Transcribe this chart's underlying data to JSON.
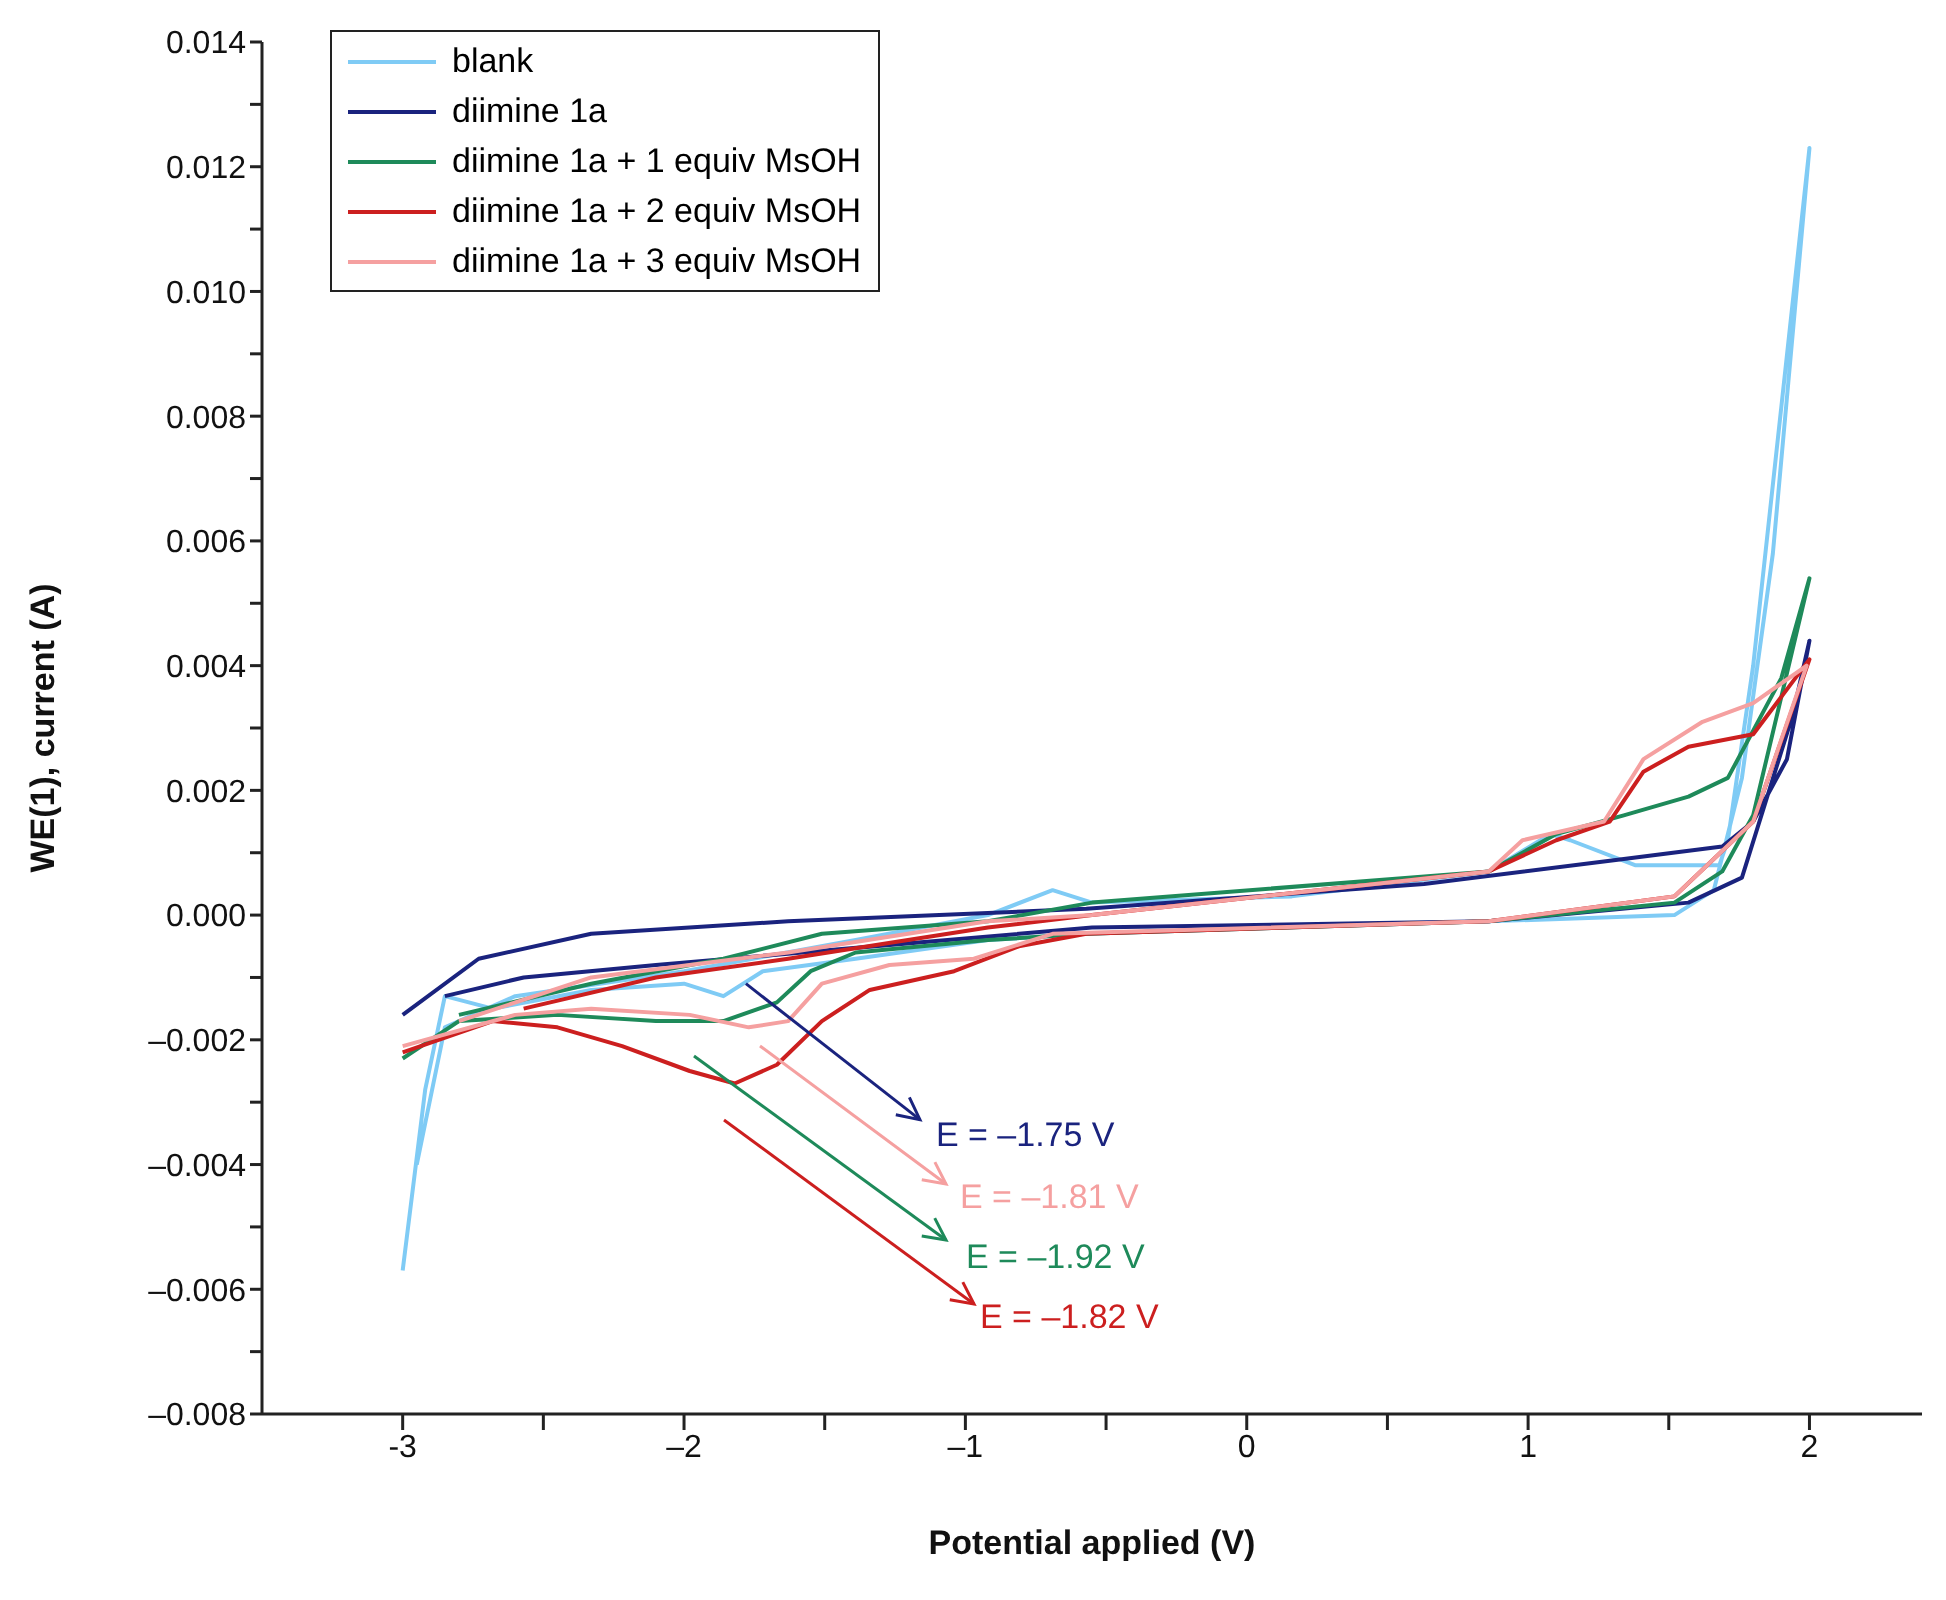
{
  "chart_data": {
    "type": "line",
    "xlabel": "Potential applied (V)",
    "ylabel": "WE(1), current (A)",
    "xlim": [
      -3.5,
      2.4
    ],
    "xticks": [
      -3,
      {
        "value": -2.5,
        "label": null
      },
      {
        "value": -2,
        "label": "–2"
      },
      {
        "value": -1.5,
        "label": null
      },
      {
        "value": -1,
        "label": "–1"
      },
      {
        "value": -0.5,
        "label": null
      },
      0,
      {
        "value": 0.5,
        "label": null
      },
      1,
      {
        "value": 1.5,
        "label": null
      },
      2
    ],
    "ylim": [
      -0.008,
      0.014
    ],
    "yticks": [
      {
        "value": -0.008,
        "label": "–0.008"
      },
      {
        "value": -0.007,
        "label": null
      },
      {
        "value": -0.006,
        "label": "–0.006"
      },
      {
        "value": -0.005,
        "label": null
      },
      {
        "value": -0.004,
        "label": "–0.004"
      },
      {
        "value": -0.003,
        "label": null
      },
      {
        "value": -0.002,
        "label": "–0.002"
      },
      {
        "value": -0.001,
        "label": null
      },
      {
        "value": 0,
        "label": "0.000"
      },
      {
        "value": 0.001,
        "label": null
      },
      {
        "value": 0.002,
        "label": "0.002"
      },
      {
        "value": 0.003,
        "label": null
      },
      {
        "value": 0.004,
        "label": "0.004"
      },
      {
        "value": 0.005,
        "label": null
      },
      {
        "value": 0.006,
        "label": "0.006"
      },
      {
        "value": 0.007,
        "label": null
      },
      {
        "value": 0.008,
        "label": "0.008"
      },
      {
        "value": 0.009,
        "label": null
      },
      {
        "value": 0.01,
        "label": "0.010"
      },
      {
        "value": 0.011,
        "label": null
      },
      {
        "value": 0.012,
        "label": "0.012"
      },
      {
        "value": 0.013,
        "label": null
      },
      {
        "value": 0.014,
        "label": "0.014"
      }
    ],
    "grid": false,
    "legend": "top left",
    "marker": "none",
    "line_style": "solid",
    "series": [
      {
        "name": "blank",
        "color": "#7fcbf5",
        "x": [
          -3,
          -2.92,
          -2.85,
          -2.68,
          -2.33,
          -2.0,
          -1.86,
          -1.72,
          -1.39,
          -0.92,
          -0.57,
          0.86,
          1.52,
          1.66,
          1.76,
          1.87,
          2.0,
          1.8,
          1.71,
          1.68,
          1.38,
          1.15,
          1.08,
          0.86,
          0.16,
          -0.55,
          -0.69,
          -0.92,
          -1.39,
          -2.0,
          -2.6,
          -2.85,
          -2.95
        ],
        "values": [
          -0.0057,
          -0.0028,
          -0.0013,
          -0.0015,
          -0.0012,
          -0.0011,
          -0.0013,
          -0.0009,
          -0.0007,
          -0.0004,
          -0.0003,
          -0.0001,
          0.0,
          0.0004,
          0.0022,
          0.0058,
          0.0123,
          0.004,
          0.0012,
          0.0008,
          0.0008,
          0.0012,
          0.0013,
          0.0007,
          0.0003,
          0.0002,
          0.0004,
          0.0,
          -0.0004,
          -0.0009,
          -0.0013,
          -0.0018,
          -0.004
        ]
      },
      {
        "name": "diimine 1a",
        "color": "#1a237e",
        "x": [
          -3,
          -2.73,
          -2.33,
          -1.63,
          -0.57,
          0.63,
          1.34,
          1.69,
          1.8,
          1.92,
          2.0,
          1.94,
          1.76,
          1.57,
          0.86,
          -0.55,
          -2.1,
          -2.57,
          -2.85
        ],
        "values": [
          -0.0016,
          -0.0007,
          -0.0003,
          -0.0001,
          0.0001,
          0.0005,
          0.0009,
          0.0011,
          0.0015,
          0.0025,
          0.0044,
          0.0032,
          0.0006,
          0.0002,
          -0.0001,
          -0.0002,
          -0.0008,
          -0.001,
          -0.0013
        ]
      },
      {
        "name": "diimine 1a + 1 equiv MsOH",
        "color": "#1e8a5a",
        "x": [
          -3,
          -2.8,
          -2.45,
          -2.1,
          -1.86,
          -1.67,
          -1.55,
          -1.39,
          -0.92,
          -0.57,
          0.86,
          1.52,
          1.69,
          1.8,
          2.0,
          1.9,
          1.71,
          1.57,
          1.34,
          1.1,
          0.86,
          -0.55,
          -0.92,
          -1.51,
          -1.86,
          -2.33,
          -2.8
        ],
        "values": [
          -0.0023,
          -0.0017,
          -0.0016,
          -0.0017,
          -0.0017,
          -0.0014,
          -0.0009,
          -0.0006,
          -0.0004,
          -0.0003,
          -0.0001,
          0.0002,
          0.0007,
          0.0016,
          0.0054,
          0.0038,
          0.0022,
          0.0019,
          0.0016,
          0.0013,
          0.0007,
          0.0002,
          -0.0001,
          -0.0003,
          -0.0007,
          -0.0011,
          -0.0016
        ]
      },
      {
        "name": "diimine 1a + 2 equiv MsOH",
        "color": "#cc1f1f",
        "x": [
          -3,
          -2.68,
          -2.45,
          -2.22,
          -1.98,
          -1.82,
          -1.67,
          -1.51,
          -1.34,
          -1.04,
          -0.81,
          -0.57,
          0.86,
          1.52,
          1.8,
          2.0,
          1.8,
          1.57,
          1.41,
          1.29,
          1.1,
          0.86,
          -0.55,
          -0.92,
          -1.63,
          -2.1,
          -2.57
        ],
        "values": [
          -0.0022,
          -0.0017,
          -0.0018,
          -0.0021,
          -0.0025,
          -0.0027,
          -0.0024,
          -0.0017,
          -0.0012,
          -0.0009,
          -0.0005,
          -0.0003,
          -0.0001,
          0.0003,
          0.0015,
          0.0041,
          0.0029,
          0.0027,
          0.0023,
          0.0015,
          0.0012,
          0.0007,
          0.0,
          -0.0002,
          -0.0007,
          -0.001,
          -0.0015
        ]
      },
      {
        "name": "diimine 1a + 3 equiv MsOH",
        "color": "#f5a0a0",
        "x": [
          -3,
          -2.6,
          -2.33,
          -1.98,
          -1.77,
          -1.63,
          -1.51,
          -1.27,
          -0.97,
          -0.69,
          0.86,
          1.52,
          1.8,
          1.99,
          1.8,
          1.62,
          1.41,
          1.27,
          0.98,
          0.86,
          -0.55,
          -0.92,
          -1.63,
          -2.33,
          -2.8
        ],
        "values": [
          -0.0021,
          -0.0016,
          -0.0015,
          -0.0016,
          -0.0018,
          -0.0017,
          -0.0011,
          -0.0008,
          -0.0007,
          -0.0003,
          -0.0001,
          0.0003,
          0.0015,
          0.004,
          0.0034,
          0.0031,
          0.0025,
          0.0015,
          0.0012,
          0.0007,
          0.0,
          -0.0001,
          -0.0006,
          -0.001,
          -0.0017
        ]
      }
    ],
    "annotations": [
      {
        "text": "E = –1.75 V",
        "x": -1.78,
        "y": -0.0011
      },
      "E = –1.81 V",
      "E = –1.92 V",
      "E = –1.82 V"
    ]
  }
}
